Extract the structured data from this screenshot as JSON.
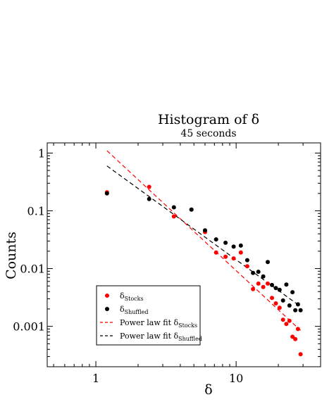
{
  "chart_data": {
    "type": "scatter",
    "title": "Histogram of δ",
    "subtitle": "45 seconds",
    "xlabel": "δ",
    "ylabel": "Counts",
    "x_scale": "log",
    "y_scale": "log",
    "xlim": [
      0.45,
      40
    ],
    "ylim": [
      0.0002,
      1.5
    ],
    "x_tick_labels": [
      "1",
      "10"
    ],
    "y_tick_labels": [
      "1",
      "0.1",
      "0.01",
      "0.001"
    ],
    "legend_position": "lower-left",
    "grid": false,
    "series": [
      {
        "name": "δStocks",
        "legend_main": "δ",
        "legend_sub": "Stocks",
        "kind": "points",
        "color": "#ff0000",
        "x": [
          1.2,
          2.4,
          3.6,
          4.8,
          6.0,
          7.2,
          8.4,
          9.6,
          10.8,
          12.0,
          13.2,
          14.4,
          15.6,
          16.8,
          18.0,
          19.2,
          20.4,
          21.6,
          22.8,
          24.0,
          25.2,
          26.4,
          27.6,
          28.8
        ],
        "y": [
          0.21,
          0.26,
          0.08,
          0.105,
          0.043,
          0.019,
          0.016,
          0.015,
          0.019,
          0.011,
          0.0044,
          0.0055,
          0.0048,
          0.0055,
          0.0031,
          0.0025,
          0.0021,
          0.0013,
          0.0011,
          0.00125,
          0.00066,
          0.0006,
          0.0009,
          0.00033
        ]
      },
      {
        "name": "δShuffled",
        "legend_main": "δ",
        "legend_sub": "Shuffled",
        "kind": "points",
        "color": "#000000",
        "x": [
          1.2,
          2.4,
          3.6,
          4.8,
          6.0,
          7.2,
          8.4,
          9.6,
          10.8,
          12.0,
          13.2,
          14.4,
          15.6,
          16.8,
          18.0,
          19.2,
          20.4,
          21.6,
          22.8,
          24.0,
          25.2,
          26.4,
          27.6,
          28.8
        ],
        "y": [
          0.2,
          0.16,
          0.115,
          0.105,
          0.046,
          0.032,
          0.028,
          0.024,
          0.025,
          0.014,
          0.0084,
          0.0088,
          0.0073,
          0.013,
          0.0052,
          0.0046,
          0.0043,
          0.0028,
          0.0053,
          0.0023,
          0.0039,
          0.0019,
          0.0024,
          0.0019
        ]
      },
      {
        "name": "Power law fit δStocks",
        "legend_main": "Power law fit δ",
        "legend_sub": "Stocks",
        "kind": "dashed-line",
        "color": "#ff0000",
        "x": [
          1.2,
          28.8
        ],
        "y": [
          1.1,
          0.00085
        ]
      },
      {
        "name": "Power law fit δShuffled",
        "legend_main": "Power law fit δ",
        "legend_sub": "Shuffled",
        "kind": "dashed-line",
        "color": "#000000",
        "x": [
          1.2,
          28.8
        ],
        "y": [
          0.6,
          0.0022
        ]
      }
    ]
  }
}
